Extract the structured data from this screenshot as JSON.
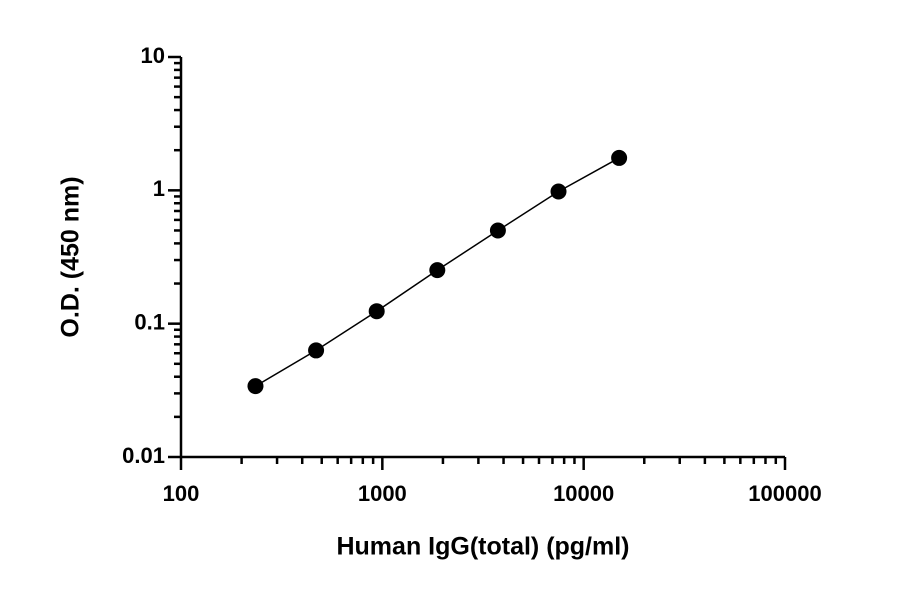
{
  "chart_data": {
    "type": "scatter",
    "xlabel": "Human IgG(total) (pg/ml)",
    "ylabel": "O.D. (450 nm)",
    "x": [
      234.375,
      468.75,
      937.5,
      1875,
      3750,
      7500,
      15000
    ],
    "series": [
      {
        "color": "#000000",
        "values": [
          0.034,
          0.063,
          0.124,
          0.252,
          0.5,
          0.98,
          1.75
        ]
      }
    ],
    "xlim": [
      100,
      100000
    ],
    "ylim": [
      0.01,
      10
    ],
    "xticks": [
      100,
      1000,
      10000,
      100000
    ],
    "yticks": [
      0.01,
      0.1,
      1,
      10
    ],
    "xlog": true,
    "ylog": true,
    "line": true
  }
}
